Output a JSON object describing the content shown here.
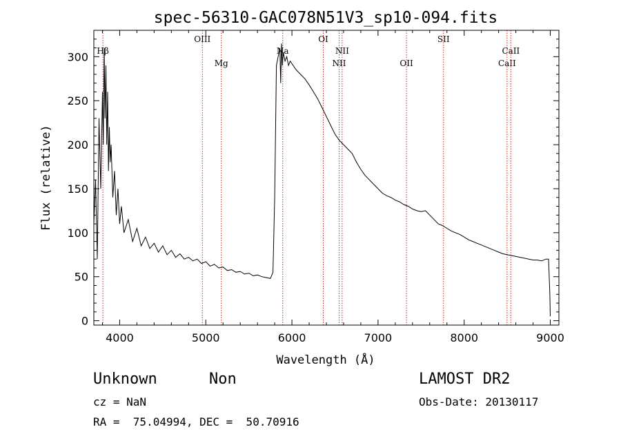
{
  "chart_data": {
    "type": "line",
    "title": "spec-56310-GAC078N51V3_sp10-094.fits",
    "xlabel": "Wavelength (Å)",
    "ylabel": "Flux (relative)",
    "xlim": [
      3700,
      9100
    ],
    "ylim": [
      -5,
      330
    ],
    "xticks": [
      4000,
      5000,
      6000,
      7000,
      8000,
      9000
    ],
    "yticks": [
      0,
      50,
      100,
      150,
      200,
      250,
      300
    ],
    "grid": false,
    "series": [
      {
        "x": [
          3700,
          3720,
          3740,
          3760,
          3780,
          3800,
          3810,
          3820,
          3830,
          3840,
          3850,
          3860,
          3870,
          3880,
          3890,
          3900,
          3920,
          3940,
          3960,
          3980,
          4000,
          4020,
          4050,
          4100,
          4150,
          4200,
          4250,
          4300,
          4350,
          4400,
          4450,
          4500,
          4550,
          4600,
          4650,
          4700,
          4750,
          4800,
          4850,
          4900,
          4950,
          5000,
          5050,
          5100,
          5150,
          5200,
          5250,
          5300,
          5350,
          5400,
          5450,
          5500,
          5550,
          5600,
          5650,
          5700,
          5750,
          5780,
          5800,
          5820,
          5840,
          5860,
          5870,
          5880,
          5890,
          5900,
          5920,
          5940,
          5960,
          5980,
          6000,
          6050,
          6100,
          6150,
          6200,
          6250,
          6300,
          6350,
          6400,
          6450,
          6500,
          6550,
          6600,
          6650,
          6700,
          6750,
          6800,
          6850,
          6900,
          6950,
          7000,
          7050,
          7100,
          7150,
          7200,
          7250,
          7300,
          7350,
          7400,
          7450,
          7500,
          7550,
          7600,
          7650,
          7700,
          7750,
          7800,
          7850,
          7900,
          7950,
          8000,
          8050,
          8100,
          8150,
          8200,
          8250,
          8300,
          8350,
          8400,
          8450,
          8500,
          8550,
          8600,
          8650,
          8700,
          8750,
          8800,
          8850,
          8900,
          8950,
          8980,
          8995,
          9000
        ],
        "y": [
          110,
          160,
          70,
          230,
          150,
          260,
          200,
          310,
          230,
          290,
          200,
          260,
          170,
          220,
          180,
          200,
          140,
          170,
          120,
          150,
          110,
          130,
          100,
          115,
          90,
          105,
          85,
          95,
          82,
          88,
          78,
          85,
          75,
          80,
          72,
          76,
          70,
          72,
          68,
          70,
          65,
          67,
          62,
          64,
          60,
          61,
          57,
          58,
          55,
          56,
          53,
          54,
          51,
          52,
          50,
          49,
          48,
          55,
          140,
          290,
          300,
          310,
          270,
          315,
          290,
          305,
          295,
          300,
          290,
          295,
          292,
          285,
          280,
          275,
          268,
          260,
          252,
          242,
          232,
          222,
          212,
          205,
          200,
          195,
          190,
          180,
          172,
          165,
          160,
          155,
          150,
          145,
          142,
          140,
          137,
          135,
          132,
          130,
          127,
          125,
          124,
          125,
          120,
          115,
          110,
          108,
          105,
          102,
          100,
          98,
          95,
          92,
          90,
          88,
          86,
          84,
          82,
          80,
          78,
          76,
          75,
          74,
          73,
          72,
          71,
          70,
          69,
          69,
          68,
          70,
          70,
          30,
          5
        ]
      }
    ],
    "annotations": [
      {
        "label": "Hβ",
        "x": 3805,
        "row": 1
      },
      {
        "label": "OIII",
        "x": 4960,
        "row": 0
      },
      {
        "label": "Mg",
        "x": 5180,
        "row": 2
      },
      {
        "label": "Na",
        "x": 5893,
        "row": 1
      },
      {
        "label": "OI",
        "x": 6364,
        "row": 0
      },
      {
        "label": "NII",
        "x": 6548,
        "row": 2
      },
      {
        "label": "NII",
        "x": 6583,
        "row": 1
      },
      {
        "label": "OII",
        "x": 7330,
        "row": 2
      },
      {
        "label": "SII",
        "x": 7760,
        "row": 0
      },
      {
        "label": "CaII",
        "x": 8498,
        "row": 2
      },
      {
        "label": "CaII",
        "x": 8542,
        "row": 1
      }
    ]
  },
  "info": {
    "class": "Unknown",
    "subclass": "Non",
    "survey": "LAMOST DR2",
    "cz": "cz = NaN",
    "obs_date": "Obs-Date: 20130117",
    "radec": "RA =  75.04994, DEC =  50.70916"
  }
}
